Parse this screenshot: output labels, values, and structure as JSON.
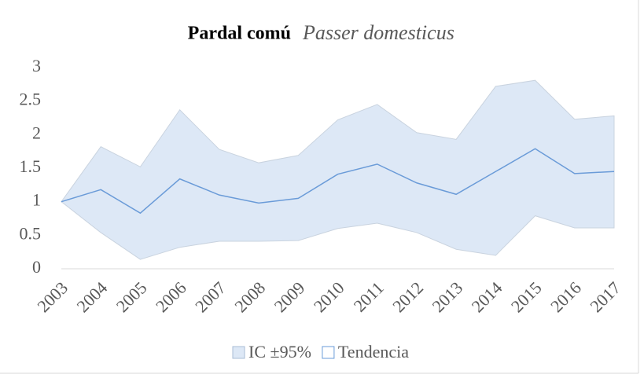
{
  "chart_data": {
    "type": "line",
    "title": "Pardal comú",
    "subtitle": "Passer domesticus",
    "categories": [
      "2003",
      "2004",
      "2005",
      "2006",
      "2007",
      "2008",
      "2009",
      "2010",
      "2011",
      "2012",
      "2013",
      "2014",
      "2015",
      "2016",
      "2017"
    ],
    "series": [
      {
        "name": "IC ±95%",
        "color": "#dde8f6",
        "lower": [
          1.0,
          0.54,
          0.14,
          0.32,
          0.41,
          0.41,
          0.42,
          0.6,
          0.68,
          0.54,
          0.29,
          0.2,
          0.79,
          0.61,
          0.61
        ],
        "upper": [
          1.0,
          1.82,
          1.52,
          2.37,
          1.78,
          1.58,
          1.69,
          2.22,
          2.45,
          2.03,
          1.93,
          2.72,
          2.81,
          2.23,
          2.28
        ]
      },
      {
        "name": "Tendencia",
        "color": "#6a9bd8",
        "values": [
          1.0,
          1.18,
          0.83,
          1.34,
          1.1,
          0.98,
          1.05,
          1.41,
          1.56,
          1.28,
          1.11,
          1.45,
          1.79,
          1.42,
          1.45
        ]
      }
    ],
    "ylim": [
      0,
      3
    ],
    "yticks": [
      0,
      0.5,
      1,
      1.5,
      2,
      2.5,
      3
    ]
  }
}
